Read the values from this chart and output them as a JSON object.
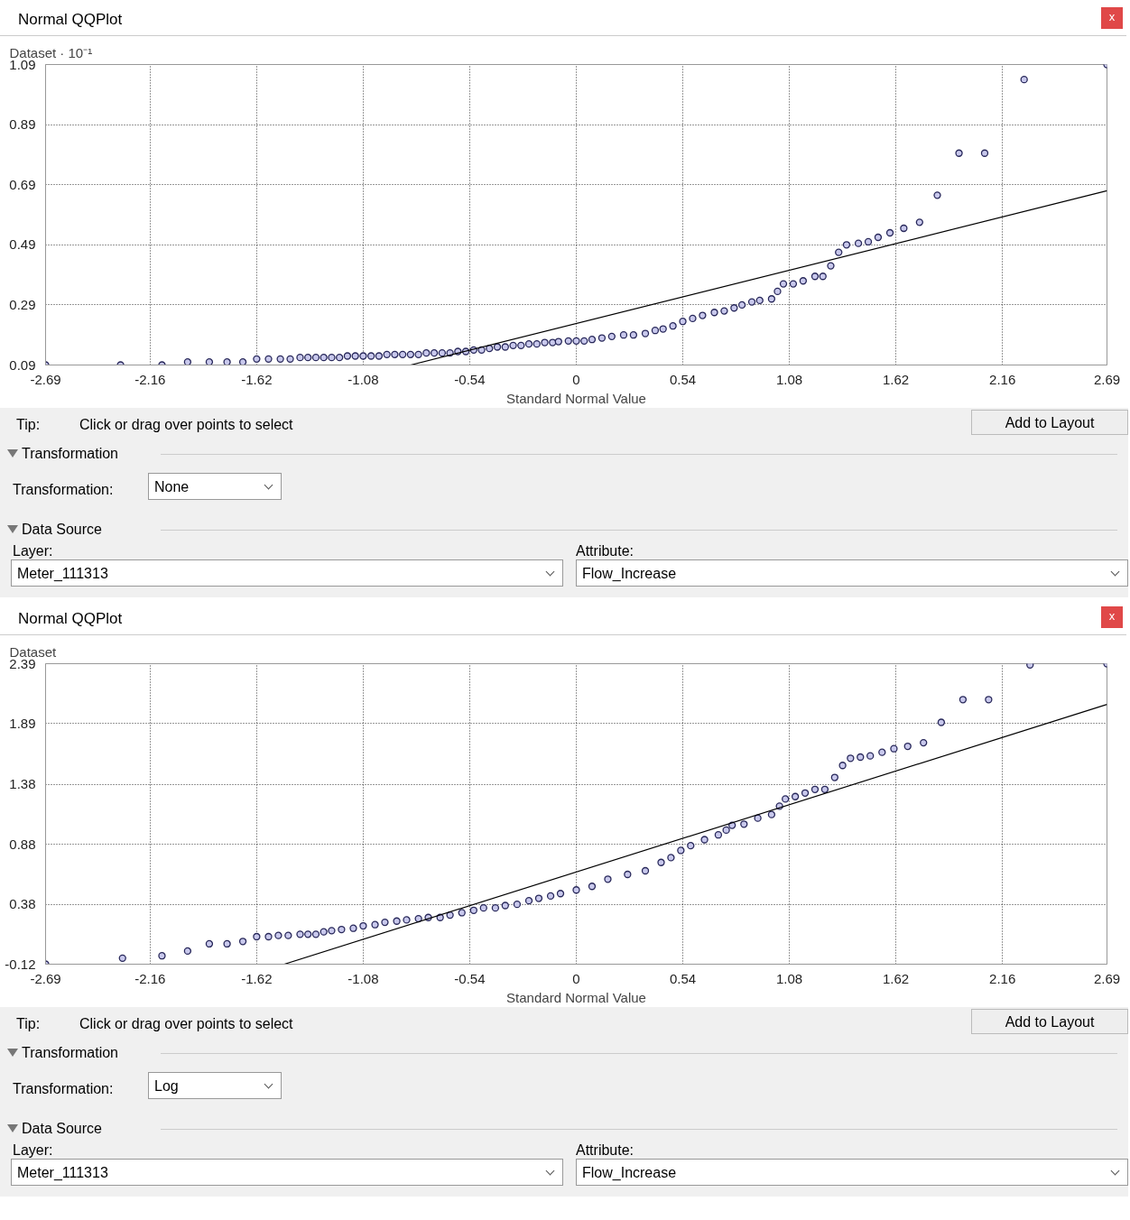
{
  "chart_data": [
    {
      "type": "scatter",
      "title": "Normal QQPlot",
      "ylabel": "Dataset · 10⁻¹",
      "xlabel": "Standard Normal Value",
      "marker": "circle",
      "grid": true,
      "xlim": [
        -2.69,
        2.69
      ],
      "xticks": [
        -2.69,
        -2.16,
        -1.62,
        -1.08,
        -0.54,
        0,
        0.54,
        1.08,
        1.62,
        2.16,
        2.69
      ],
      "ylim": [
        0.09,
        1.09
      ],
      "yticks": [
        0.09,
        0.29,
        0.49,
        0.69,
        0.89,
        1.09
      ],
      "annotations": [
        "x",
        "Tip:",
        "Click or drag over points to select",
        "Add to Layout",
        "Transformation",
        "Transformation:",
        "None",
        "Data Source",
        "Layer:",
        "Meter_111313",
        "Attribute:",
        "Flow_Increase"
      ],
      "series": [
        {
          "type": "scatter",
          "color": "#28285a",
          "x": [
            -2.69,
            -2.31,
            -2.1,
            -1.97,
            -1.86,
            -1.77,
            -1.69,
            -1.62,
            -1.56,
            -1.5,
            -1.45,
            -1.4,
            -1.36,
            -1.32,
            -1.28,
            -1.24,
            -1.2,
            -1.16,
            -1.12,
            -1.08,
            -1.04,
            -1.0,
            -0.96,
            -0.92,
            -0.88,
            -0.84,
            -0.8,
            -0.76,
            -0.72,
            -0.68,
            -0.64,
            -0.6,
            -0.56,
            -0.52,
            -0.48,
            -0.44,
            -0.4,
            -0.36,
            -0.32,
            -0.28,
            -0.24,
            -0.2,
            -0.16,
            -0.12,
            -0.09,
            -0.04,
            0,
            0.04,
            0.08,
            0.13,
            0.18,
            0.24,
            0.29,
            0.35,
            0.4,
            0.44,
            0.49,
            0.54,
            0.59,
            0.64,
            0.7,
            0.75,
            0.8,
            0.84,
            0.89,
            0.93,
            0.99,
            1.02,
            1.05,
            1.1,
            1.15,
            1.21,
            1.25,
            1.29,
            1.33,
            1.37,
            1.43,
            1.48,
            1.53,
            1.59,
            1.66,
            1.74,
            1.83,
            1.94,
            2.07,
            2.27,
            2.69
          ],
          "values": [
            0.09,
            0.09,
            0.09,
            0.1,
            0.1,
            0.1,
            0.1,
            0.11,
            0.11,
            0.11,
            0.11,
            0.115,
            0.115,
            0.115,
            0.115,
            0.115,
            0.115,
            0.12,
            0.12,
            0.12,
            0.12,
            0.12,
            0.125,
            0.125,
            0.125,
            0.125,
            0.125,
            0.13,
            0.13,
            0.13,
            0.13,
            0.135,
            0.135,
            0.14,
            0.14,
            0.145,
            0.15,
            0.15,
            0.155,
            0.155,
            0.16,
            0.16,
            0.165,
            0.165,
            0.168,
            0.17,
            0.17,
            0.17,
            0.175,
            0.18,
            0.185,
            0.19,
            0.19,
            0.195,
            0.205,
            0.21,
            0.22,
            0.235,
            0.245,
            0.255,
            0.265,
            0.27,
            0.28,
            0.29,
            0.3,
            0.305,
            0.31,
            0.335,
            0.36,
            0.36,
            0.37,
            0.385,
            0.385,
            0.42,
            0.465,
            0.49,
            0.495,
            0.5,
            0.515,
            0.53,
            0.545,
            0.565,
            0.655,
            0.795,
            0.795,
            1.04,
            1.09
          ]
        },
        {
          "type": "line",
          "color": "#000000",
          "marker": "none",
          "x": [
            -0.84,
            2.69
          ],
          "values": [
            0.09,
            0.67
          ]
        }
      ]
    },
    {
      "type": "scatter",
      "title": "Normal QQPlot",
      "ylabel": "Dataset",
      "xlabel": "Standard Normal Value",
      "marker": "circle",
      "grid": true,
      "xlim": [
        -2.69,
        2.69
      ],
      "xticks": [
        -2.69,
        -2.16,
        -1.62,
        -1.08,
        -0.54,
        0,
        0.54,
        1.08,
        1.62,
        2.16,
        2.69
      ],
      "ylim": [
        -0.12,
        2.39
      ],
      "yticks": [
        -0.12,
        0.38,
        0.88,
        1.38,
        1.89,
        2.39
      ],
      "annotations": [
        "x",
        "Tip:",
        "Click or drag over points to select",
        "Add to Layout",
        "Transformation",
        "Transformation:",
        "Log",
        "Data Source",
        "Layer:",
        "Meter_111313",
        "Attribute:",
        "Flow_Increase"
      ],
      "series": [
        {
          "type": "scatter",
          "color": "#28285a",
          "x": [
            -2.69,
            -2.3,
            -2.1,
            -1.97,
            -1.86,
            -1.77,
            -1.69,
            -1.62,
            -1.56,
            -1.51,
            -1.46,
            -1.4,
            -1.36,
            -1.32,
            -1.28,
            -1.24,
            -1.19,
            -1.13,
            -1.08,
            -1.02,
            -0.97,
            -0.91,
            -0.86,
            -0.8,
            -0.75,
            -0.69,
            -0.64,
            -0.58,
            -0.52,
            -0.47,
            -0.41,
            -0.36,
            -0.3,
            -0.24,
            -0.19,
            -0.13,
            -0.08,
            0,
            0.08,
            0.16,
            0.26,
            0.35,
            0.43,
            0.48,
            0.53,
            0.58,
            0.65,
            0.72,
            0.76,
            0.79,
            0.85,
            0.92,
            0.99,
            1.03,
            1.06,
            1.11,
            1.16,
            1.21,
            1.26,
            1.31,
            1.35,
            1.39,
            1.44,
            1.49,
            1.55,
            1.61,
            1.68,
            1.76,
            1.85,
            1.96,
            2.09,
            2.3,
            2.69
          ],
          "values": [
            -0.12,
            -0.07,
            -0.05,
            -0.01,
            0.05,
            0.05,
            0.07,
            0.11,
            0.11,
            0.12,
            0.12,
            0.13,
            0.13,
            0.13,
            0.15,
            0.16,
            0.17,
            0.18,
            0.2,
            0.21,
            0.23,
            0.24,
            0.25,
            0.26,
            0.27,
            0.27,
            0.29,
            0.31,
            0.33,
            0.35,
            0.35,
            0.37,
            0.38,
            0.41,
            0.43,
            0.45,
            0.47,
            0.5,
            0.53,
            0.59,
            0.63,
            0.66,
            0.73,
            0.77,
            0.83,
            0.87,
            0.92,
            0.96,
            1.0,
            1.04,
            1.05,
            1.1,
            1.13,
            1.2,
            1.26,
            1.28,
            1.31,
            1.34,
            1.34,
            1.44,
            1.54,
            1.6,
            1.61,
            1.62,
            1.65,
            1.68,
            1.7,
            1.73,
            1.9,
            2.09,
            2.09,
            2.38,
            2.39
          ]
        },
        {
          "type": "line",
          "color": "#000000",
          "marker": "none",
          "x": [
            -1.48,
            2.69
          ],
          "values": [
            -0.12,
            2.05
          ]
        }
      ]
    }
  ]
}
